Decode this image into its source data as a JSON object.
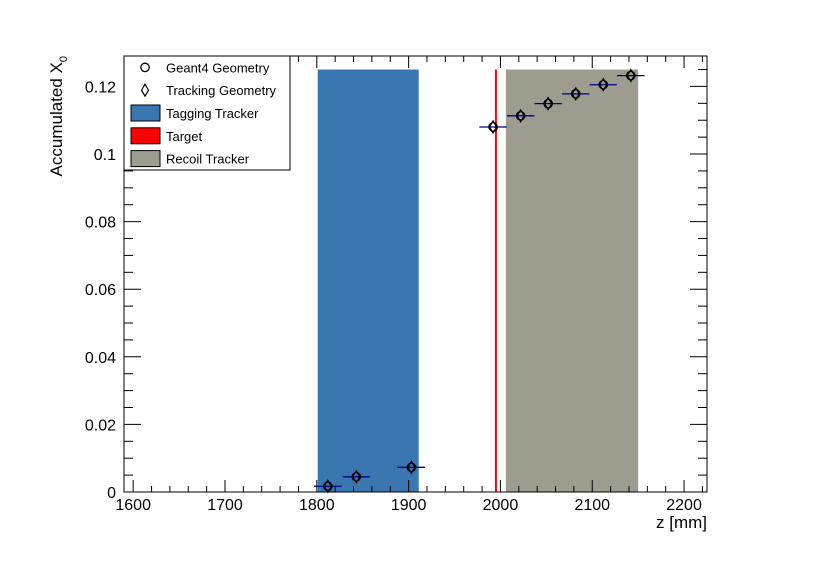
{
  "chart_data": {
    "type": "scatter",
    "xlabel": "z [mm]",
    "ylabel_main": "Accumulated X",
    "ylabel_sub": "0",
    "xlim": [
      1590,
      2225
    ],
    "ylim": [
      0,
      0.129
    ],
    "x_ticks": [
      1600,
      1700,
      1800,
      1900,
      2000,
      2100,
      2200
    ],
    "x_tick_labels": [
      "1600",
      "1700",
      "1800",
      "1900",
      "2000",
      "2100",
      "2200"
    ],
    "y_ticks": [
      0,
      0.02,
      0.04,
      0.06,
      0.08,
      0.1,
      0.12
    ],
    "y_tick_labels": [
      "0",
      "0.02",
      "0.04",
      "0.06",
      "0.08",
      "0.1",
      "0.12"
    ],
    "grid": false,
    "legend_position": "top-left",
    "regions": [
      {
        "name": "Tagging Tracker",
        "x0": 1801,
        "x1": 1911,
        "ymax": 0.125,
        "color": "#3a76b0"
      },
      {
        "name": "Target",
        "x0": 1994,
        "x1": 1996,
        "ymax": 0.125,
        "color": "#ff0000"
      },
      {
        "name": "Recoil Tracker",
        "x0": 2006,
        "x1": 2150,
        "ymax": 0.125,
        "color": "#9e9c8f"
      }
    ],
    "series": [
      {
        "name": "Geant4 Geometry",
        "marker": "circle",
        "x": [
          1812,
          1843,
          1903,
          1992,
          2022,
          2052,
          2082,
          2112,
          2142
        ],
        "y": [
          0.0017,
          0.0045,
          0.0073,
          0.108,
          0.1113,
          0.1149,
          0.1178,
          0.1205,
          0.1232
        ],
        "xerr": [
          15,
          15,
          15,
          15,
          15,
          15,
          15,
          15,
          15
        ]
      },
      {
        "name": "Tracking Geometry",
        "marker": "diamond",
        "x": [
          1812,
          1843,
          1903,
          1992,
          2022,
          2052,
          2082,
          2112,
          2142
        ],
        "y": [
          0.0017,
          0.0045,
          0.0073,
          0.108,
          0.1113,
          0.1149,
          0.1178,
          0.1205,
          0.1232
        ]
      }
    ],
    "legend": [
      {
        "label": "Geant4 Geometry",
        "symbol": "circle"
      },
      {
        "label": "Tracking Geometry",
        "symbol": "diamond"
      },
      {
        "label": "Tagging Tracker",
        "symbol": "box",
        "color": "#3a76b0"
      },
      {
        "label": "Target",
        "symbol": "box",
        "color": "#ff0000"
      },
      {
        "label": "Recoil Tracker",
        "symbol": "box",
        "color": "#9e9c8f"
      }
    ],
    "errorbar_color": "#00008b"
  }
}
